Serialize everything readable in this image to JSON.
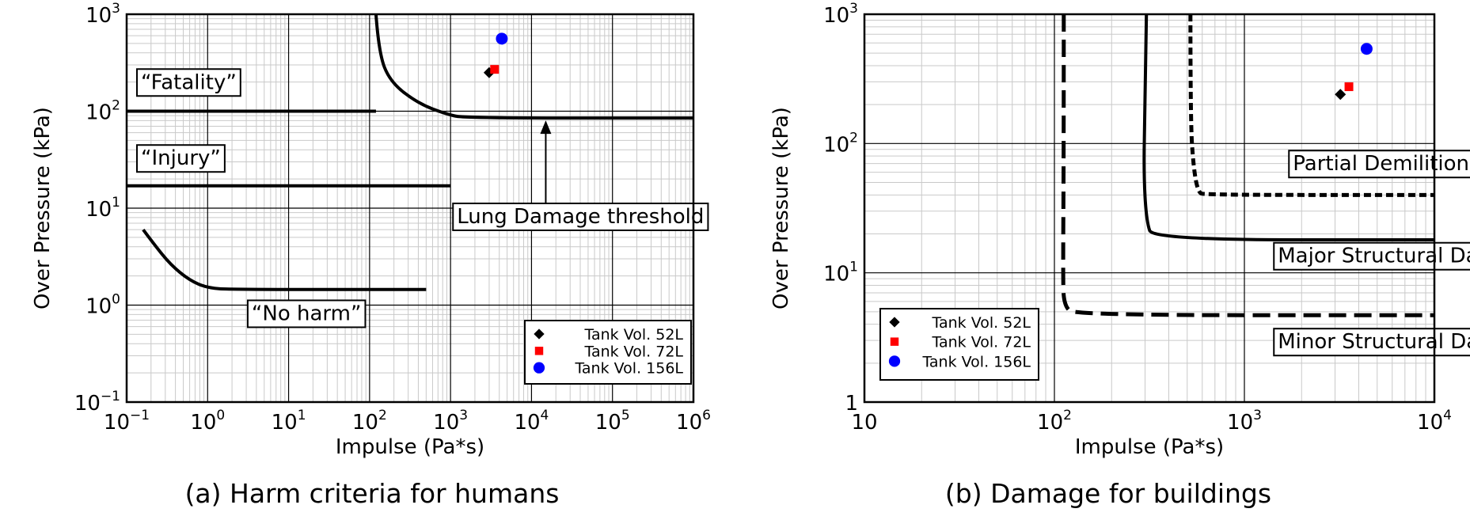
{
  "panels": [
    {
      "caption": "(a) Harm criteria for humans",
      "chart_data": {
        "type": "scatter",
        "xlabel": "Impulse (Pa*s)",
        "ylabel": "Over Pressure (kPa)",
        "x_scale": "log",
        "y_scale": "log",
        "xlim": [
          0.1,
          1000000
        ],
        "ylim": [
          0.1,
          1000
        ],
        "grid": true,
        "legend_position": "bottom-right",
        "x_ticks": [
          {
            "base": "10",
            "exp": "−1"
          },
          {
            "base": "10",
            "exp": "0"
          },
          {
            "base": "10",
            "exp": "1"
          },
          {
            "base": "10",
            "exp": "2"
          },
          {
            "base": "10",
            "exp": "3"
          },
          {
            "base": "10",
            "exp": "4"
          },
          {
            "base": "10",
            "exp": "5"
          },
          {
            "base": "10",
            "exp": "6"
          }
        ],
        "y_ticks": [
          {
            "base": "10",
            "exp": "−1"
          },
          {
            "base": "10",
            "exp": "0"
          },
          {
            "base": "10",
            "exp": "1"
          },
          {
            "base": "10",
            "exp": "2"
          },
          {
            "base": "10",
            "exp": "3"
          }
        ],
        "curves": [
          {
            "label": "“Fatality”",
            "style": "solid",
            "points": [
              [
                0.1,
                100
              ],
              [
                120,
                100
              ]
            ]
          },
          {
            "label": "“Injury”",
            "style": "solid",
            "points": [
              [
                0.1,
                17
              ],
              [
                1000,
                17
              ]
            ]
          },
          {
            "label": "“No harm”",
            "style": "solid",
            "points": [
              [
                0.16,
                6
              ],
              [
                0.22,
                4.2
              ],
              [
                0.35,
                2.6
              ],
              [
                0.6,
                1.8
              ],
              [
                1,
                1.5
              ],
              [
                2,
                1.45
              ],
              [
                500,
                1.45
              ]
            ]
          },
          {
            "label": "Lung Damage threshold",
            "style": "solid",
            "points": [
              [
                120,
                1000
              ],
              [
                130,
                400
              ],
              [
                180,
                200
              ],
              [
                400,
                120
              ],
              [
                900,
                93
              ],
              [
                1500,
                85
              ],
              [
                1000000,
                85
              ]
            ]
          }
        ],
        "annotations": [
          {
            "text": "“Fatality”",
            "x": 0.15,
            "y": 170
          },
          {
            "text": "“Injury”",
            "x": 0.15,
            "y": 28
          },
          {
            "text": "“No harm”",
            "x": 3.5,
            "y": 0.7
          },
          {
            "text": "Lung Damage threshold",
            "x": 1200,
            "y": 7
          }
        ],
        "arrow": {
          "x": 15000,
          "y_from": 7,
          "y_to": 85
        },
        "series": [
          {
            "name": "Tank Vol. 52L",
            "marker": "diamond",
            "color": "#000000",
            "x": [
              3000
            ],
            "y": [
              250
            ]
          },
          {
            "name": "Tank Vol. 72L",
            "marker": "square",
            "color": "#ff0000",
            "x": [
              3500
            ],
            "y": [
              270
            ]
          },
          {
            "name": "Tank Vol. 156L",
            "marker": "circle",
            "color": "#0000ff",
            "x": [
              4300
            ],
            "y": [
              560
            ]
          }
        ]
      }
    },
    {
      "caption": "(b) Damage for buildings",
      "chart_data": {
        "type": "scatter",
        "xlabel": "Impulse (Pa*s)",
        "ylabel": "Over Pressure (kPa)",
        "x_scale": "log",
        "y_scale": "log",
        "xlim": [
          10,
          10000
        ],
        "ylim": [
          1,
          1000
        ],
        "grid": true,
        "legend_position": "bottom-left",
        "x_ticks": [
          {
            "base": "10",
            "exp": ""
          },
          {
            "base": "10",
            "exp": "2"
          },
          {
            "base": "10",
            "exp": "3"
          },
          {
            "base": "10",
            "exp": "4"
          }
        ],
        "y_ticks": [
          {
            "base": "1",
            "exp": ""
          },
          {
            "base": "10",
            "exp": "1"
          },
          {
            "base": "10",
            "exp": "2"
          },
          {
            "base": "10",
            "exp": "3"
          }
        ],
        "curves": [
          {
            "label": "Partial Demilition",
            "style": "dotted",
            "points": [
              [
                520,
                1000
              ],
              [
                520,
                150
              ],
              [
                540,
                65
              ],
              [
                570,
                42
              ],
              [
                620,
                40
              ],
              [
                10000,
                40
              ]
            ]
          },
          {
            "label": "Major Structural Damage",
            "style": "solid",
            "points": [
              [
                305,
                1000
              ],
              [
                300,
                200
              ],
              [
                295,
                60
              ],
              [
                305,
                25
              ],
              [
                330,
                18
              ],
              [
                10000,
                18
              ]
            ]
          },
          {
            "label": "Minor Structural Damage",
            "style": "dashed",
            "points": [
              [
                112,
                1000
              ],
              [
                112,
                100
              ],
              [
                111,
                10
              ],
              [
                112,
                5.5
              ],
              [
                130,
                4.7
              ],
              [
                10000,
                4.7
              ]
            ]
          }
        ],
        "annotations": [
          {
            "text": "Partial Demilition",
            "x": 1800,
            "y": 62
          },
          {
            "text": "Major Structural Damage",
            "x": 1500,
            "y": 12
          },
          {
            "text": "Minor Structural Damage",
            "x": 1500,
            "y": 2.6
          }
        ],
        "series": [
          {
            "name": "Tank Vol. 52L",
            "marker": "diamond",
            "color": "#000000",
            "x": [
              3200
            ],
            "y": [
              240
            ]
          },
          {
            "name": "Tank Vol. 72L",
            "marker": "square",
            "color": "#ff0000",
            "x": [
              3550
            ],
            "y": [
              275
            ]
          },
          {
            "name": "Tank Vol. 156L",
            "marker": "circle",
            "color": "#0000ff",
            "x": [
              4400
            ],
            "y": [
              540
            ]
          }
        ]
      }
    }
  ]
}
